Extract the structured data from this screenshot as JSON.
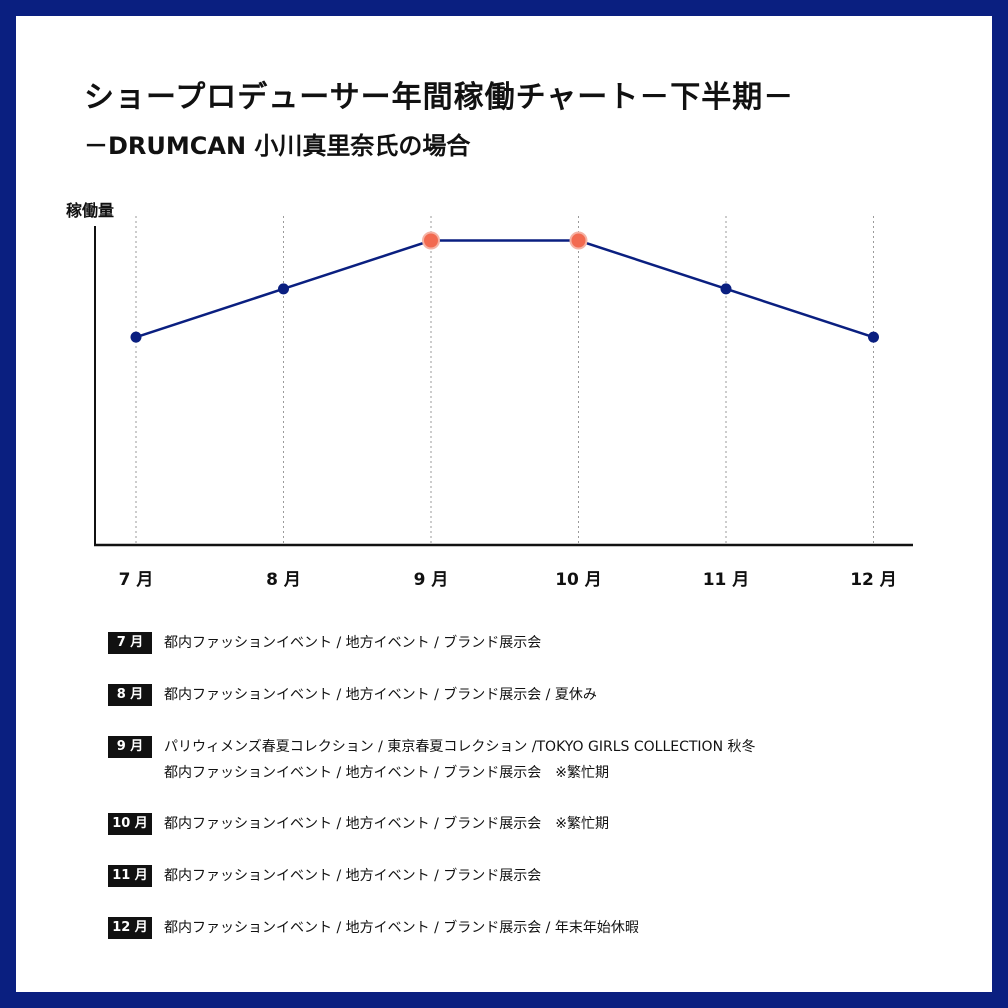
{
  "title": "ショープロデューサー年間稼働チャート－下半期－",
  "subtitle": "－DRUMCAN 小川真里奈氏の場合",
  "colors": {
    "frame": "#0a1f80",
    "line": "#0a1f80",
    "highlight_fill": "#f26a50",
    "highlight_stroke": "#f5b2a4"
  },
  "chart_data": {
    "type": "line",
    "ylabel": "稼働量",
    "xlabel": "",
    "categories": [
      "7 月",
      "8 月",
      "9 月",
      "10 月",
      "11 月",
      "12 月"
    ],
    "values": [
      2,
      3,
      4,
      4,
      3,
      2
    ],
    "highlighted": [
      false,
      false,
      true,
      true,
      false,
      false
    ],
    "ylim": [
      -2.3,
      4.3
    ],
    "grid": "vertical dotted lines at each month",
    "legend": "none"
  },
  "schedule": [
    {
      "month": "7 月",
      "lines": [
        "都内ファッションイベント / 地方イベント / ブランド展示会"
      ]
    },
    {
      "month": "8 月",
      "lines": [
        "都内ファッションイベント / 地方イベント / ブランド展示会 / 夏休み"
      ]
    },
    {
      "month": "9 月",
      "lines": [
        "パリウィメンズ春夏コレクション / 東京春夏コレクション /TOKYO GIRLS COLLECTION 秋冬",
        "都内ファッションイベント / 地方イベント / ブランド展示会　※繁忙期"
      ]
    },
    {
      "month": "10 月",
      "lines": [
        "都内ファッションイベント / 地方イベント / ブランド展示会　※繁忙期"
      ]
    },
    {
      "month": "11 月",
      "lines": [
        "都内ファッションイベント / 地方イベント / ブランド展示会"
      ]
    },
    {
      "month": "12 月",
      "lines": [
        "都内ファッションイベント / 地方イベント / ブランド展示会 / 年末年始休暇"
      ]
    }
  ]
}
